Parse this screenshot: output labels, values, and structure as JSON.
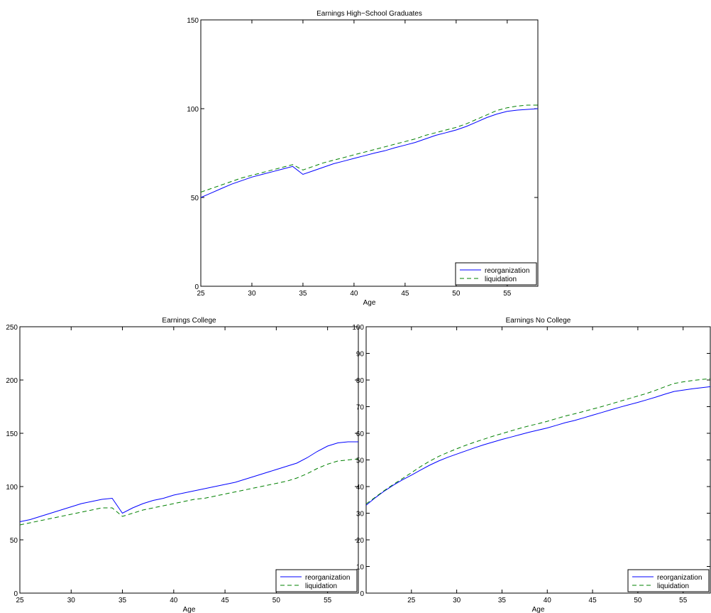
{
  "chart_data": [
    {
      "type": "line",
      "title": "Earnings High−School Graduates",
      "xlabel": "Age",
      "ylabel": "",
      "xlim": [
        25,
        58
      ],
      "ylim": [
        0,
        150
      ],
      "xticks": [
        25,
        30,
        35,
        40,
        45,
        50,
        55
      ],
      "yticks": [
        0,
        50,
        100,
        150
      ],
      "legend": "bottom-right",
      "series": [
        {
          "name": "reorganization",
          "color": "#0000ff",
          "style": "solid",
          "x": [
            25,
            26,
            27,
            28,
            29,
            30,
            31,
            32,
            33,
            34,
            35,
            36,
            37,
            38,
            39,
            40,
            41,
            42,
            43,
            44,
            45,
            46,
            47,
            48,
            49,
            50,
            51,
            52,
            53,
            54,
            55,
            56,
            57,
            58
          ],
          "y": [
            50,
            52.5,
            55,
            57.5,
            59.5,
            61.5,
            63,
            64.5,
            66,
            67.5,
            63,
            65,
            67,
            69,
            70.5,
            72,
            73.5,
            75,
            76.3,
            78,
            79.5,
            81,
            83,
            85,
            86.5,
            88,
            90,
            92.5,
            95,
            97,
            98.5,
            99.2,
            99.6,
            100
          ]
        },
        {
          "name": "liquidation",
          "color": "#008000",
          "style": "dashed",
          "x": [
            25,
            26,
            27,
            28,
            29,
            30,
            31,
            32,
            33,
            34,
            35,
            36,
            37,
            38,
            39,
            40,
            41,
            42,
            43,
            44,
            45,
            46,
            47,
            48,
            49,
            50,
            51,
            52,
            53,
            54,
            55,
            56,
            57,
            58
          ],
          "y": [
            53,
            55,
            57,
            59,
            61,
            62.5,
            64,
            65.5,
            67,
            68.5,
            65.5,
            67.5,
            69.5,
            71,
            72.5,
            74,
            75.5,
            77,
            78.5,
            80,
            81.5,
            83,
            85,
            86.5,
            88,
            89.5,
            91.5,
            94,
            96.5,
            99,
            100.5,
            101.5,
            102,
            102
          ]
        }
      ]
    },
    {
      "type": "line",
      "title": "Earnings College",
      "xlabel": "Age",
      "ylabel": "",
      "xlim": [
        25,
        58
      ],
      "ylim": [
        0,
        250
      ],
      "xticks": [
        25,
        30,
        35,
        40,
        45,
        50,
        55
      ],
      "yticks": [
        0,
        50,
        100,
        150,
        200,
        250
      ],
      "legend": "bottom-right",
      "series": [
        {
          "name": "reorganization",
          "color": "#0000ff",
          "style": "solid",
          "x": [
            25,
            26,
            27,
            28,
            29,
            30,
            31,
            32,
            33,
            34,
            35,
            36,
            37,
            38,
            39,
            40,
            41,
            42,
            43,
            44,
            45,
            46,
            47,
            48,
            49,
            50,
            51,
            52,
            53,
            54,
            55,
            56,
            57,
            58
          ],
          "y": [
            67,
            69,
            72,
            75,
            78,
            81,
            84,
            86,
            88,
            89,
            75,
            80,
            84,
            87,
            89,
            92,
            94,
            96,
            98,
            100,
            102,
            104,
            107,
            110,
            113,
            116,
            119,
            122,
            127,
            133,
            138,
            141,
            142,
            142
          ]
        },
        {
          "name": "liquidation",
          "color": "#008000",
          "style": "dashed",
          "x": [
            25,
            26,
            27,
            28,
            29,
            30,
            31,
            32,
            33,
            34,
            35,
            36,
            37,
            38,
            39,
            40,
            41,
            42,
            43,
            44,
            45,
            46,
            47,
            48,
            49,
            50,
            51,
            52,
            53,
            54,
            55,
            56,
            57,
            58
          ],
          "y": [
            64,
            66,
            68,
            70,
            72,
            74,
            76,
            78,
            80,
            80,
            72,
            75,
            78,
            80,
            82,
            84,
            86,
            88,
            89,
            91,
            93,
            95,
            97,
            99,
            101,
            103,
            105,
            108,
            112,
            117,
            121,
            124,
            125,
            126
          ]
        }
      ]
    },
    {
      "type": "line",
      "title": "Earnings No College",
      "xlabel": "Age",
      "ylabel": "",
      "xlim": [
        20,
        58
      ],
      "ylim": [
        0,
        100
      ],
      "xticks": [
        25,
        30,
        35,
        40,
        45,
        50,
        55
      ],
      "yticks": [
        0,
        10,
        20,
        30,
        40,
        50,
        60,
        70,
        80,
        90,
        100
      ],
      "legend": "bottom-right",
      "series": [
        {
          "name": "reorganization",
          "color": "#0000ff",
          "style": "solid",
          "x": [
            20,
            21,
            22,
            23,
            24,
            25,
            26,
            27,
            28,
            29,
            30,
            31,
            32,
            33,
            34,
            35,
            36,
            37,
            38,
            39,
            40,
            41,
            42,
            43,
            44,
            45,
            46,
            47,
            48,
            49,
            50,
            51,
            52,
            53,
            54,
            55,
            56,
            57,
            58
          ],
          "y": [
            33,
            35.8,
            38.3,
            40.5,
            42.5,
            44.3,
            46.2,
            48,
            49.6,
            51,
            52.2,
            53.4,
            54.6,
            55.7,
            56.7,
            57.7,
            58.6,
            59.5,
            60.4,
            61.2,
            62,
            63,
            64,
            64.8,
            65.8,
            66.8,
            67.8,
            68.8,
            69.8,
            70.7,
            71.6,
            72.6,
            73.6,
            74.7,
            75.7,
            76.2,
            76.7,
            77.1,
            77.5
          ]
        },
        {
          "name": "liquidation",
          "color": "#008000",
          "style": "dashed",
          "x": [
            20,
            21,
            22,
            23,
            24,
            25,
            26,
            27,
            28,
            29,
            30,
            31,
            32,
            33,
            34,
            35,
            36,
            37,
            38,
            39,
            40,
            41,
            42,
            43,
            44,
            45,
            46,
            47,
            48,
            49,
            50,
            51,
            52,
            53,
            54,
            55,
            56,
            57,
            58
          ],
          "y": [
            33.5,
            36,
            38.5,
            40.8,
            43,
            45.2,
            47.5,
            49.5,
            51.3,
            52.8,
            54.2,
            55.5,
            56.7,
            57.8,
            58.9,
            59.9,
            60.9,
            61.9,
            62.8,
            63.6,
            64.5,
            65.5,
            66.5,
            67.3,
            68.2,
            69.1,
            70,
            71,
            72,
            73,
            74,
            75,
            76.2,
            77.5,
            78.7,
            79.3,
            79.8,
            80.2,
            80.5
          ]
        }
      ]
    }
  ]
}
